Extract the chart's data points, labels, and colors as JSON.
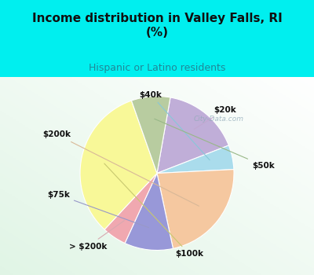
{
  "title": "Income distribution in Valley Falls, RI\n(%)",
  "subtitle": "Hispanic or Latino residents",
  "labels": [
    "$20k",
    "$40k",
    "$200k",
    "$75k",
    "> $200k",
    "$100k",
    "$50k"
  ],
  "sizes": [
    16,
    5,
    22,
    10,
    5,
    32,
    8
  ],
  "colors": [
    "#c0aed8",
    "#aadcec",
    "#f5c8a0",
    "#9898d8",
    "#f0a8b0",
    "#f8f898",
    "#b8cca0"
  ],
  "bg_top": "#00efef",
  "bg_chart_tl": "#e8faf0",
  "bg_chart_br": "#f0fff8",
  "title_color": "#101010",
  "subtitle_color": "#208898",
  "label_color": "#101010",
  "watermark": "City-Data.com",
  "label_lines": [
    "#c0a8d0",
    "#88c8d8",
    "#d8b898",
    "#9898c8",
    "#d8a8b0",
    "#c8c870",
    "#98b888"
  ]
}
